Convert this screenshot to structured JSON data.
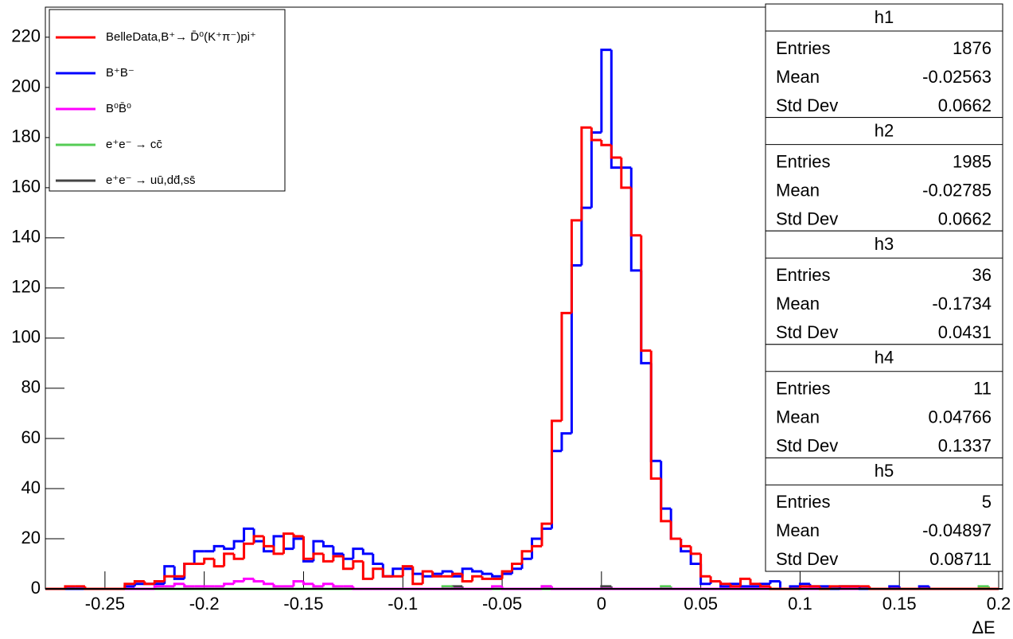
{
  "chart_data": {
    "type": "histogram",
    "x_label": "ΔE",
    "bins": [
      -0.28,
      -0.275,
      -0.27,
      -0.265,
      -0.26,
      -0.255,
      -0.25,
      -0.245,
      -0.24,
      -0.235,
      -0.23,
      -0.225,
      -0.22,
      -0.215,
      -0.21,
      -0.205,
      -0.2,
      -0.195,
      -0.19,
      -0.185,
      -0.18,
      -0.175,
      -0.17,
      -0.165,
      -0.16,
      -0.155,
      -0.15,
      -0.145,
      -0.14,
      -0.135,
      -0.13,
      -0.125,
      -0.12,
      -0.115,
      -0.11,
      -0.105,
      -0.1,
      -0.095,
      -0.09,
      -0.085,
      -0.08,
      -0.075,
      -0.07,
      -0.065,
      -0.06,
      -0.055,
      -0.05,
      -0.045,
      -0.04,
      -0.035,
      -0.03,
      -0.025,
      -0.02,
      -0.015,
      -0.01,
      -0.005,
      0,
      0.005,
      0.01,
      0.015,
      0.02,
      0.025,
      0.03,
      0.035,
      0.04,
      0.045,
      0.05,
      0.055,
      0.06,
      0.065,
      0.07,
      0.075,
      0.08,
      0.085,
      0.09,
      0.095,
      0.1,
      0.105,
      0.11,
      0.115,
      0.12,
      0.125,
      0.13,
      0.135,
      0.14,
      0.145,
      0.15,
      0.155,
      0.16,
      0.165,
      0.17,
      0.175,
      0.18,
      0.185,
      0.19,
      0.195,
      0.2
    ],
    "series": [
      {
        "name": "BelleData,B⁺→ D̄⁰(K⁺π⁻)pi⁺",
        "color": "#ff0000",
        "values": [
          0,
          0,
          1,
          1,
          0,
          0,
          0,
          0,
          2,
          3,
          2,
          3,
          5,
          5,
          10,
          10,
          12,
          9,
          14,
          12,
          18,
          21,
          17,
          14,
          22,
          21,
          12,
          14,
          11,
          13,
          8,
          11,
          4,
          8,
          5,
          5,
          9,
          2,
          7,
          5,
          5,
          6,
          3,
          5,
          4,
          4,
          7,
          10,
          15,
          17,
          26,
          67,
          110,
          147,
          184,
          179,
          177,
          172,
          160,
          141,
          95,
          44,
          27,
          20,
          17,
          14,
          5,
          3,
          2,
          1,
          4,
          2,
          1,
          0,
          0,
          0,
          1,
          1,
          0,
          1,
          1,
          1,
          1,
          0,
          0,
          0,
          0,
          0,
          0,
          0,
          0,
          0,
          0,
          0,
          0,
          0
        ]
      },
      {
        "name": "B⁺B⁻",
        "color": "#0000ff",
        "values": [
          0,
          0,
          0,
          0,
          0,
          0,
          0,
          0,
          1,
          2,
          2,
          2,
          9,
          4,
          10,
          15,
          15,
          17,
          16,
          19,
          24,
          19,
          15,
          21,
          16,
          20,
          11,
          19,
          17,
          14,
          12,
          16,
          14,
          10,
          5,
          8,
          8,
          6,
          5,
          6,
          7,
          5,
          8,
          7,
          6,
          5,
          6,
          8,
          12,
          20,
          24,
          55,
          62,
          129,
          152,
          182,
          215,
          168,
          168,
          127,
          90,
          51,
          32,
          20,
          15,
          10,
          2,
          3,
          1,
          2,
          1,
          1,
          2,
          3,
          0,
          1,
          2,
          1,
          1,
          0,
          1,
          1,
          0,
          0,
          0,
          1,
          0,
          0,
          1,
          0,
          0,
          0,
          0,
          0,
          0,
          0
        ]
      },
      {
        "name": "B⁰B̄⁰",
        "color": "#ff00ff",
        "values": [
          0,
          0,
          0,
          0,
          0,
          0,
          0,
          0,
          0,
          0,
          0,
          1,
          1,
          2,
          1,
          1,
          1,
          1,
          2,
          3,
          4,
          3,
          2,
          1,
          1,
          3,
          2,
          1,
          2,
          1,
          1,
          0,
          0,
          0,
          0,
          0,
          0,
          0,
          0,
          0,
          0,
          0,
          0,
          0,
          0,
          1,
          0,
          0,
          0,
          0,
          1,
          0,
          0,
          0,
          0,
          0,
          0,
          0,
          0,
          0,
          0,
          0,
          0,
          0,
          0,
          0,
          0,
          0,
          0,
          0,
          0,
          0,
          0,
          0,
          0,
          0,
          0,
          0,
          0,
          0,
          0,
          0,
          0,
          0,
          0,
          0,
          0,
          0,
          0,
          0,
          0,
          0,
          0,
          0,
          0,
          0
        ]
      },
      {
        "name": "e⁺e⁻ → cc̄",
        "color": "#55cc55",
        "values": [
          0,
          0,
          0,
          0,
          0,
          0,
          0,
          0,
          0,
          0,
          0,
          0,
          0,
          0,
          0,
          0,
          0,
          0,
          0,
          0,
          0,
          0,
          0,
          0,
          0,
          0,
          0,
          0,
          0,
          0,
          0,
          0,
          0,
          0,
          0,
          0,
          0,
          0,
          0,
          0,
          1,
          0,
          0,
          0,
          0,
          0,
          0,
          0,
          0,
          0,
          0,
          0,
          0,
          0,
          0,
          0,
          0,
          0,
          0,
          0,
          0,
          0,
          1,
          0,
          0,
          0,
          0,
          0,
          0,
          0,
          0,
          0,
          0,
          0,
          0,
          0,
          0,
          0,
          0,
          0,
          1,
          0,
          0,
          0,
          0,
          0,
          0,
          0,
          0,
          0,
          0,
          0,
          0,
          0,
          1,
          0
        ]
      },
      {
        "name": "e⁺e⁻ → uū,dd̄,ss̄",
        "color": "#444444",
        "values": [
          0,
          0,
          0,
          0,
          0,
          0,
          0,
          0,
          0,
          0,
          0,
          0,
          0,
          0,
          0,
          0,
          0,
          0,
          0,
          0,
          0,
          0,
          0,
          0,
          0,
          0,
          0,
          0,
          0,
          0,
          0,
          0,
          0,
          0,
          0,
          0,
          0,
          0,
          0,
          0,
          0,
          1,
          0,
          0,
          0,
          0,
          0,
          0,
          0,
          0,
          1,
          0,
          0,
          0,
          0,
          0,
          1,
          0,
          0,
          0,
          0,
          0,
          0,
          0,
          0,
          0,
          0,
          0,
          0,
          0,
          0,
          0,
          0,
          0,
          0,
          0,
          0,
          0,
          0,
          0,
          0,
          0,
          0,
          0,
          0,
          0,
          0,
          0,
          0,
          0,
          0,
          0,
          0,
          0,
          0,
          0
        ]
      }
    ],
    "xlim": [
      -0.28,
      0.2
    ],
    "xticks": [
      -0.25,
      -0.2,
      -0.15,
      -0.1,
      -0.05,
      0,
      0.05,
      0.1,
      0.15,
      0.2
    ],
    "ylim": [
      0,
      232
    ],
    "yticks": [
      0,
      20,
      40,
      60,
      80,
      100,
      120,
      140,
      160,
      180,
      200,
      220
    ],
    "legend": "top-left",
    "stats_labels": [
      "Entries",
      "Mean",
      "Std Dev"
    ],
    "stats": [
      {
        "name": "h1",
        "entries": 1876,
        "mean": -0.02563,
        "std_dev": 0.0662
      },
      {
        "name": "h2",
        "entries": 1985,
        "mean": -0.02785,
        "std_dev": 0.0662
      },
      {
        "name": "h3",
        "entries": 36,
        "mean": -0.1734,
        "std_dev": 0.0431
      },
      {
        "name": "h4",
        "entries": 11,
        "mean": 0.04766,
        "std_dev": 0.1337
      },
      {
        "name": "h5",
        "entries": 5,
        "mean": -0.04897,
        "std_dev": 0.08711
      }
    ]
  }
}
